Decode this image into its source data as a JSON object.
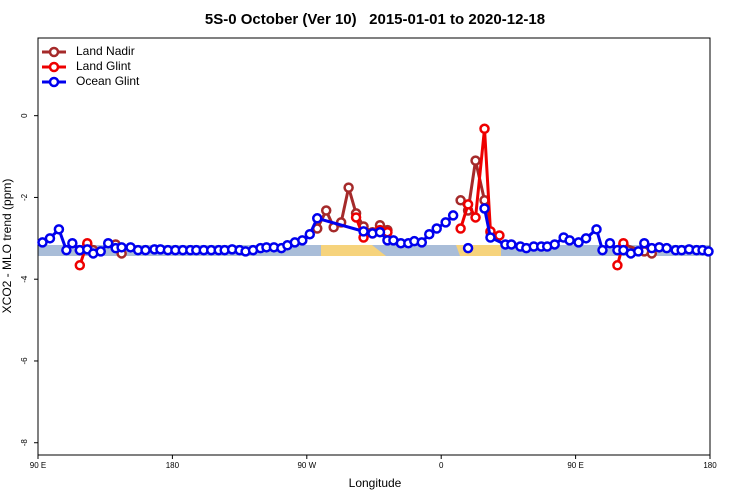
{
  "chart_data": {
    "type": "line",
    "title": "5S-0 October (Ver 10)   2015-01-01 to 2020-12-18",
    "x_label": "Longitude",
    "y_label": "XCO2 - MLO trend (ppm)",
    "xlim": [
      90,
      540
    ],
    "xticks": [
      {
        "value": 90,
        "label": "90 E"
      },
      180,
      {
        "value": 270,
        "label": "90 W"
      },
      {
        "value": 360,
        "label": "0"
      },
      {
        "value": 450,
        "label": "90 E"
      },
      {
        "value": 540,
        "label": "180"
      }
    ],
    "ylim": [
      -8.3,
      1.9
    ],
    "yticks": [
      0,
      -2,
      -4,
      -6,
      -8
    ],
    "grid": false,
    "legend": "top-left",
    "series": [
      {
        "name": "Land Nadir",
        "color": "#a52a2a",
        "x": [
          118,
          123,
          127,
          135,
          142,
          146,
          200,
          277,
          283,
          288,
          293,
          298,
          303,
          308,
          314,
          319,
          324,
          350,
          373,
          378,
          383,
          389,
          393,
          440,
          482,
          496,
          501,
          506
        ],
        "values": [
          -3.29,
          -3.15,
          -3.29,
          null,
          -3.15,
          -3.37,
          null,
          -2.76,
          -2.32,
          -2.73,
          -2.61,
          -1.76,
          -2.39,
          -2.71,
          -2.85,
          -2.68,
          -2.8,
          null,
          -2.07,
          -2.32,
          -1.1,
          -2.07,
          -2.85,
          null,
          -3.15,
          -3.32,
          -3.37,
          -3.22
        ]
      },
      {
        "name": "Land Glint",
        "color": "#ee0000",
        "x": [
          118,
          123,
          200,
          303,
          308,
          314,
          319,
          324,
          350,
          373,
          378,
          383,
          389,
          393,
          399,
          440,
          478,
          482
        ],
        "values": [
          -3.66,
          -3.12,
          null,
          -2.49,
          -2.98,
          -2.88,
          -2.8,
          -2.85,
          null,
          -2.76,
          -2.17,
          -2.49,
          -0.32,
          -2.83,
          -2.93,
          null,
          -3.66,
          -3.12
        ]
      },
      {
        "name": "Ocean Glint",
        "color": "#0000ee",
        "x": [
          93,
          98,
          104,
          109,
          113,
          118,
          123,
          127,
          132,
          137,
          142,
          146,
          152,
          157,
          162,
          168,
          172,
          177,
          182,
          187,
          192,
          196,
          201,
          206,
          211,
          215,
          220,
          225,
          229,
          234,
          239,
          243,
          248,
          253,
          257,
          262,
          267,
          272,
          277,
          308,
          314,
          319,
          324,
          328,
          333,
          338,
          342,
          347,
          352,
          357,
          363,
          368,
          373,
          378,
          383,
          389,
          393,
          403,
          407,
          413,
          417,
          422,
          427,
          431,
          436,
          442,
          446,
          452,
          457,
          464,
          468,
          473,
          478,
          482,
          487,
          492,
          496,
          501,
          506,
          511,
          517,
          521,
          526,
          531,
          535,
          539
        ],
        "values": [
          -3.1,
          -3.0,
          -2.78,
          -3.29,
          -3.12,
          -3.29,
          -3.27,
          -3.37,
          -3.32,
          -3.12,
          -3.24,
          -3.22,
          -3.22,
          -3.29,
          -3.29,
          -3.27,
          -3.27,
          -3.29,
          -3.29,
          -3.29,
          -3.29,
          -3.29,
          -3.29,
          -3.29,
          -3.29,
          -3.29,
          -3.27,
          -3.29,
          -3.32,
          -3.29,
          -3.24,
          -3.22,
          -3.22,
          -3.24,
          -3.17,
          -3.1,
          -3.05,
          -2.9,
          -2.51,
          -2.83,
          -2.88,
          -2.85,
          -3.05,
          -3.05,
          -3.12,
          -3.12,
          -3.07,
          -3.1,
          -2.9,
          -2.76,
          -2.61,
          -2.44,
          null,
          -3.24,
          null,
          -2.27,
          -2.98,
          -3.15,
          -3.15,
          -3.2,
          -3.24,
          -3.2,
          -3.2,
          -3.2,
          -3.15,
          -2.98,
          -3.05,
          -3.1,
          -3.0,
          -2.78,
          -3.29,
          -3.12,
          -3.29,
          -3.29,
          -3.37,
          -3.32,
          -3.12,
          -3.24,
          -3.22,
          -3.24,
          -3.29,
          -3.29,
          -3.27,
          -3.29,
          -3.29,
          -3.32
        ]
      }
    ]
  }
}
